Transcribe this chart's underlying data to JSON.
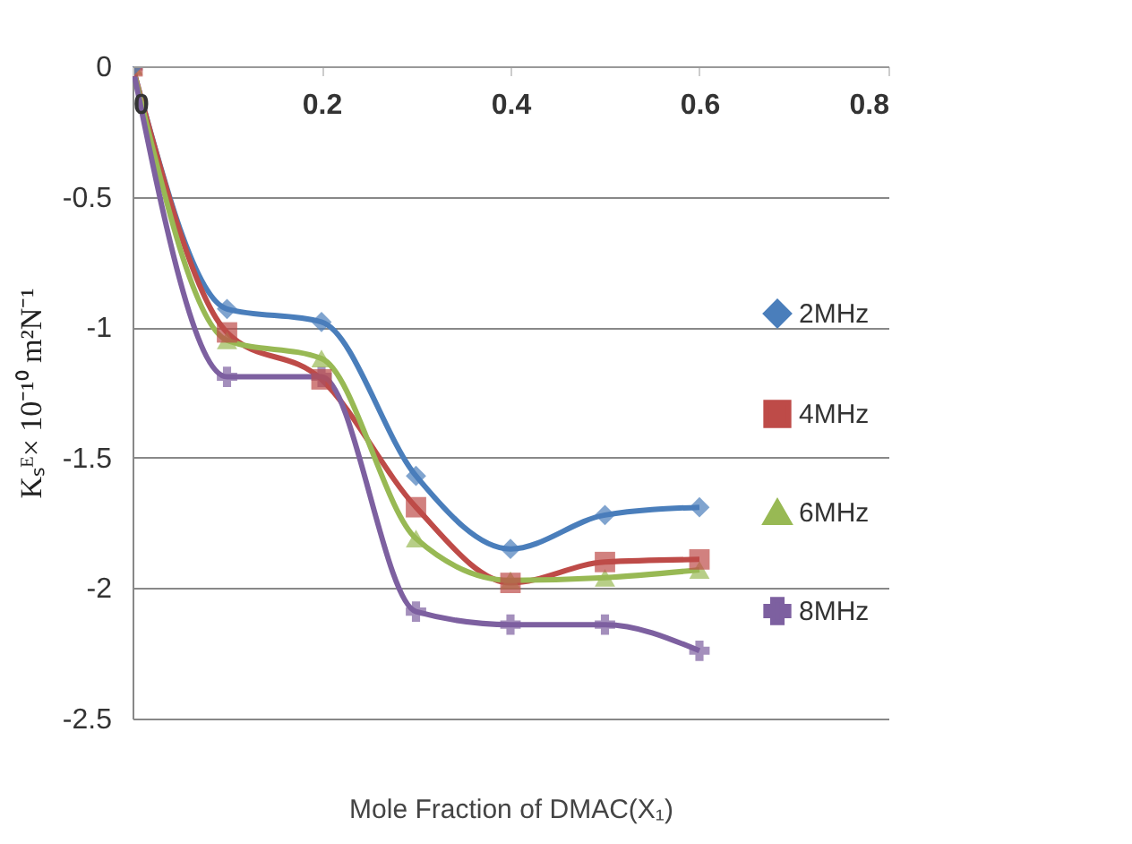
{
  "chart_data": {
    "type": "line",
    "xlabel": "Mole Fraction of DMAC(X₁)",
    "ylabel": "Kₛᴱ× 10⁻¹⁰ m²N⁻¹",
    "x": [
      0,
      0.1,
      0.2,
      0.3,
      0.4,
      0.5,
      0.6
    ],
    "series": [
      {
        "name": "2MHz",
        "color": "#4a7ebb",
        "marker": "diamond",
        "values": [
          0,
          -0.93,
          -0.98,
          -1.57,
          -1.85,
          -1.72,
          -1.69
        ]
      },
      {
        "name": "4MHz",
        "color": "#be4b48",
        "marker": "square",
        "values": [
          0,
          -1.02,
          -1.2,
          -1.69,
          -1.98,
          -1.9,
          -1.89
        ]
      },
      {
        "name": "6MHz",
        "color": "#98b954",
        "marker": "triangle",
        "values": [
          0,
          -1.05,
          -1.12,
          -1.81,
          -1.97,
          -1.96,
          -1.93
        ]
      },
      {
        "name": "8MHz",
        "color": "#7d60a0",
        "marker": "cross",
        "values": [
          0,
          -1.19,
          -1.19,
          -2.09,
          -2.14,
          -2.14,
          -2.24
        ]
      }
    ],
    "xlim": [
      0,
      0.8
    ],
    "xticks": [
      0,
      0.2,
      0.4,
      0.6,
      0.8
    ],
    "ylim": [
      -2.5,
      0
    ],
    "yticks": [
      -2.5,
      -2,
      -1.5,
      -1,
      -0.5,
      0
    ],
    "grid": "y",
    "legend": "right"
  }
}
